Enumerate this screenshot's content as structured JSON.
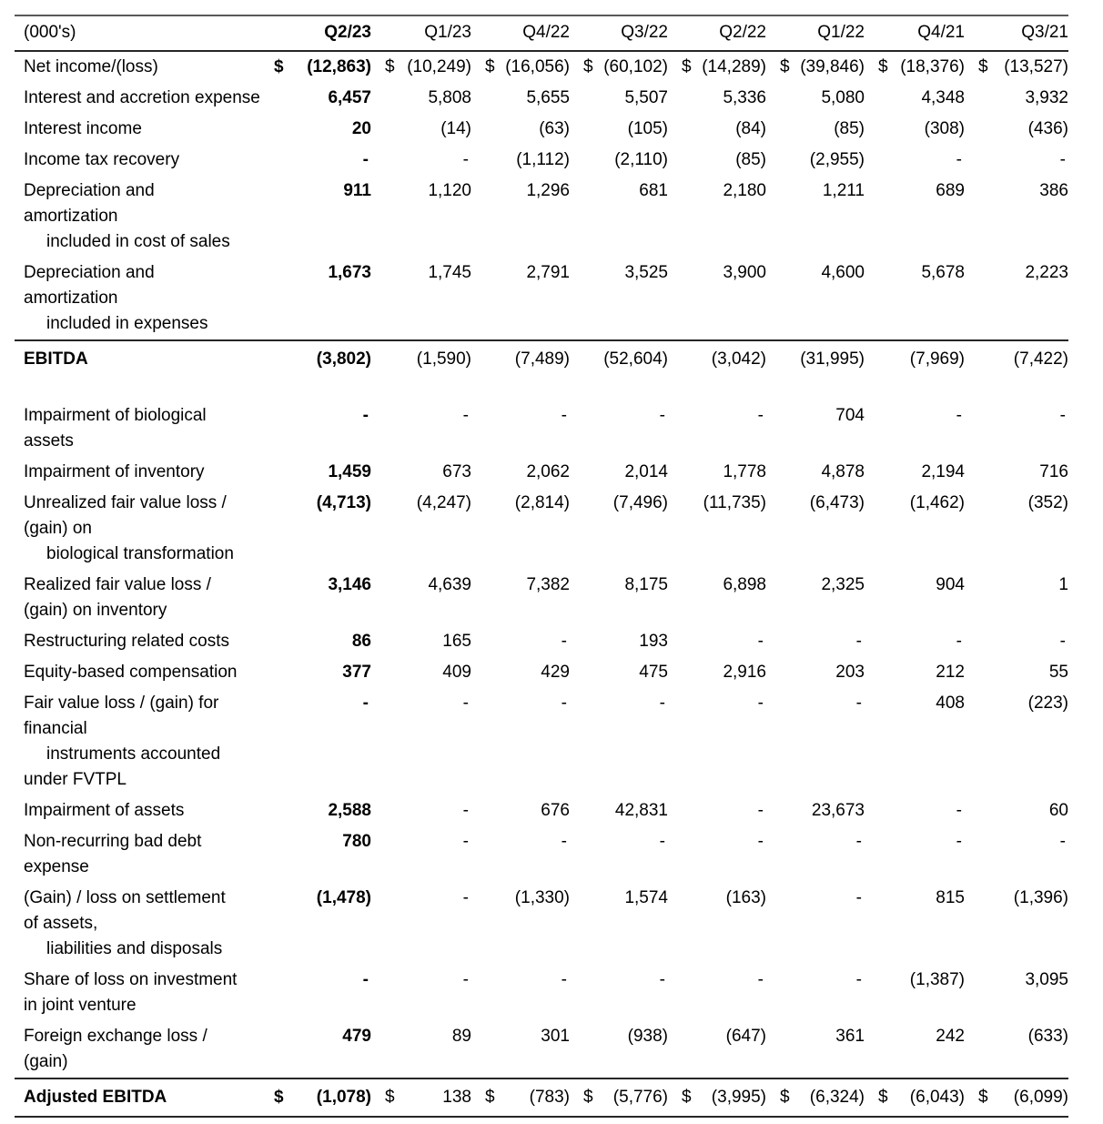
{
  "colors": {
    "text": "#000000",
    "rule_light": "#595959",
    "rule_dark": "#262626",
    "background": "#ffffff"
  },
  "table": {
    "unit_label": "(000's)",
    "columns": [
      "Q2/23",
      "Q1/23",
      "Q4/22",
      "Q3/22",
      "Q2/22",
      "Q1/22",
      "Q4/21",
      "Q3/21"
    ],
    "bold_column_index": 0,
    "rows": [
      {
        "name": "row-net-income-loss",
        "label_lines": [
          {
            "t": "Net income/(loss)",
            "i": 0
          }
        ],
        "dollar": true,
        "values": [
          "(12,863)",
          "(10,249)",
          "(16,056)",
          "(60,102)",
          "(14,289)",
          "(39,846)",
          "(18,376)",
          "(13,527)"
        ]
      },
      {
        "name": "row-interest-and-accretion-expense",
        "label_lines": [
          {
            "t": "Interest and accretion expense",
            "i": 0
          }
        ],
        "dollar": false,
        "values": [
          "6,457",
          "5,808",
          "5,655",
          "5,507",
          "5,336",
          "5,080",
          "4,348",
          "3,932"
        ]
      },
      {
        "name": "row-interest-income",
        "label_lines": [
          {
            "t": "Interest income",
            "i": 0
          }
        ],
        "dollar": false,
        "values": [
          "20",
          "(14)",
          "(63)",
          "(105)",
          "(84)",
          "(85)",
          "(308)",
          "(436)"
        ]
      },
      {
        "name": "row-income-tax-recovery",
        "label_lines": [
          {
            "t": "Income tax recovery",
            "i": 0
          }
        ],
        "dollar": false,
        "values": [
          "-",
          "-",
          "(1,112)",
          "(2,110)",
          "(85)",
          "(2,955)",
          "-",
          "-"
        ]
      },
      {
        "name": "row-depreciation-amortization-cost-of-sales",
        "label_lines": [
          {
            "t": "Depreciation and",
            "i": 0
          },
          {
            "t": "amortization",
            "i": 0
          },
          {
            "t": "included in cost of sales",
            "i": 1
          }
        ],
        "dollar": false,
        "values": [
          "911",
          "1,120",
          "1,296",
          "681",
          "2,180",
          "1,211",
          "689",
          "386"
        ]
      },
      {
        "name": "row-depreciation-amortization-expenses",
        "label_lines": [
          {
            "t": "Depreciation and",
            "i": 0
          },
          {
            "t": "amortization",
            "i": 0
          },
          {
            "t": "included in expenses",
            "i": 1
          }
        ],
        "dollar": false,
        "values": [
          "1,673",
          "1,745",
          "2,791",
          "3,525",
          "3,900",
          "4,600",
          "5,678",
          "2,223"
        ]
      },
      {
        "name": "row-ebitda",
        "label_lines": [
          {
            "t": "EBITDA",
            "i": 0
          }
        ],
        "bold_label": true,
        "rule_top": true,
        "gap_after": true,
        "dollar": false,
        "values": [
          "(3,802)",
          "(1,590)",
          "(7,489)",
          "(52,604)",
          "(3,042)",
          "(31,995)",
          "(7,969)",
          "(7,422)"
        ]
      },
      {
        "name": "row-impairment-of-biological-assets",
        "label_lines": [
          {
            "t": "Impairment of biological",
            "i": 0
          },
          {
            "t": "assets",
            "i": 0
          }
        ],
        "dollar": false,
        "values": [
          "-",
          "-",
          "-",
          "-",
          "-",
          "704",
          "-",
          "-"
        ]
      },
      {
        "name": "row-impairment-of-inventory",
        "label_lines": [
          {
            "t": "Impairment of inventory",
            "i": 0
          }
        ],
        "dollar": false,
        "values": [
          "1,459",
          "673",
          "2,062",
          "2,014",
          "1,778",
          "4,878",
          "2,194",
          "716"
        ]
      },
      {
        "name": "row-unrealized-fair-value-loss-gain-biological-transformation",
        "label_lines": [
          {
            "t": "Unrealized fair value loss /",
            "i": 0
          },
          {
            "t": "(gain) on",
            "i": 0
          },
          {
            "t": "biological transformation",
            "i": 1
          }
        ],
        "dollar": false,
        "values": [
          "(4,713)",
          "(4,247)",
          "(2,814)",
          "(7,496)",
          "(11,735)",
          "(6,473)",
          "(1,462)",
          "(352)"
        ]
      },
      {
        "name": "row-realized-fair-value-loss-gain-inventory",
        "label_lines": [
          {
            "t": "Realized fair value loss /",
            "i": 0
          },
          {
            "t": "(gain) on inventory",
            "i": 0
          }
        ],
        "dollar": false,
        "values": [
          "3,146",
          "4,639",
          "7,382",
          "8,175",
          "6,898",
          "2,325",
          "904",
          "1"
        ]
      },
      {
        "name": "row-restructuring-related-costs",
        "label_lines": [
          {
            "t": "Restructuring related costs",
            "i": 0
          }
        ],
        "dollar": false,
        "values": [
          "86",
          "165",
          "-",
          "193",
          "-",
          "-",
          "-",
          "-"
        ]
      },
      {
        "name": "row-equity-based-compensation",
        "label_lines": [
          {
            "t": "Equity-based compensation",
            "i": 0
          }
        ],
        "dollar": false,
        "values": [
          "377",
          "409",
          "429",
          "475",
          "2,916",
          "203",
          "212",
          "55"
        ]
      },
      {
        "name": "row-fair-value-loss-gain-fvtpl",
        "label_lines": [
          {
            "t": "Fair value loss / (gain) for",
            "i": 0
          },
          {
            "t": "financial",
            "i": 0
          },
          {
            "t": "instruments accounted",
            "i": 1
          },
          {
            "t": "under FVTPL",
            "i": 0
          }
        ],
        "dollar": false,
        "values": [
          "-",
          "-",
          "-",
          "-",
          "-",
          "-",
          "408",
          "(223)"
        ]
      },
      {
        "name": "row-impairment-of-assets",
        "label_lines": [
          {
            "t": "Impairment of assets",
            "i": 0
          }
        ],
        "dollar": false,
        "values": [
          "2,588",
          "-",
          "676",
          "42,831",
          "-",
          "23,673",
          "-",
          "60"
        ]
      },
      {
        "name": "row-non-recurring-bad-debt-expense",
        "label_lines": [
          {
            "t": "Non-recurring bad debt",
            "i": 0
          },
          {
            "t": "expense",
            "i": 0
          }
        ],
        "dollar": false,
        "values": [
          "780",
          "-",
          "-",
          "-",
          "-",
          "-",
          "-",
          "-"
        ]
      },
      {
        "name": "row-gain-loss-on-settlement",
        "label_lines": [
          {
            "t": "(Gain) / loss on settlement",
            "i": 0
          },
          {
            "t": "of assets,",
            "i": 0
          },
          {
            "t": "liabilities and disposals",
            "i": 1
          }
        ],
        "dollar": false,
        "values": [
          "(1,478)",
          "-",
          "(1,330)",
          "1,574",
          "(163)",
          "-",
          "815",
          "(1,396)"
        ]
      },
      {
        "name": "row-share-of-loss-on-investment-joint-venture",
        "label_lines": [
          {
            "t": "Share of loss on investment",
            "i": 0
          },
          {
            "t": "in joint venture",
            "i": 0
          }
        ],
        "dollar": false,
        "values": [
          "-",
          "-",
          "-",
          "-",
          "-",
          "-",
          "(1,387)",
          "3,095"
        ]
      },
      {
        "name": "row-foreign-exchange-loss-gain",
        "label_lines": [
          {
            "t": "Foreign exchange loss /",
            "i": 0
          },
          {
            "t": "(gain)",
            "i": 0
          }
        ],
        "dollar": false,
        "values": [
          "479",
          "89",
          "301",
          "(938)",
          "(647)",
          "361",
          "242",
          "(633)"
        ]
      },
      {
        "name": "row-adjusted-ebitda",
        "label_lines": [
          {
            "t": "Adjusted EBITDA",
            "i": 0
          }
        ],
        "bold_label": true,
        "rule_both": true,
        "dollar": true,
        "values": [
          "(1,078)",
          "138",
          "(783)",
          "(5,776)",
          "(3,995)",
          "(6,324)",
          "(6,043)",
          "(6,099)"
        ]
      }
    ]
  }
}
